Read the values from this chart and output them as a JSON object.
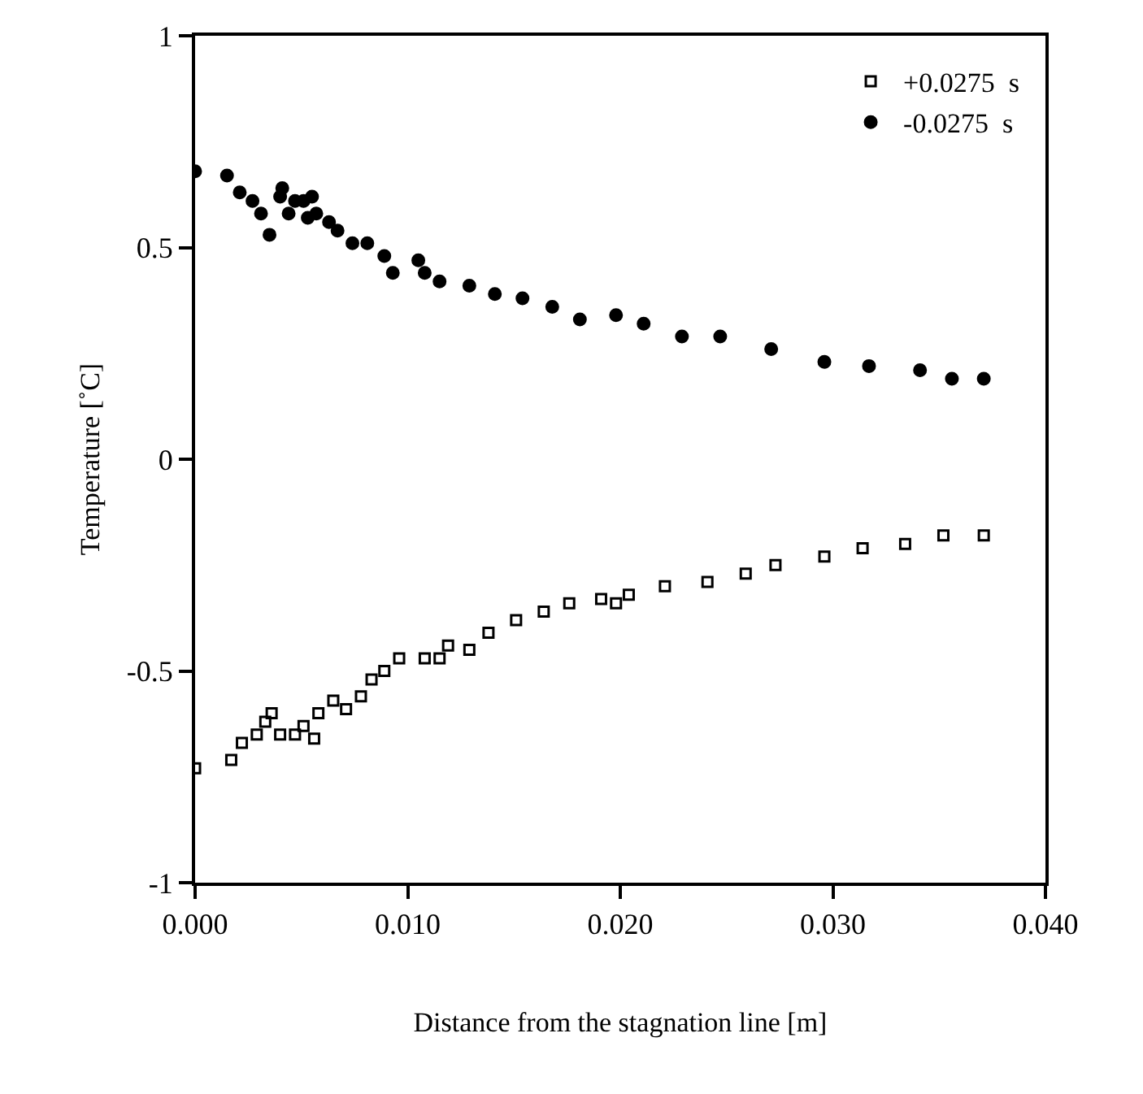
{
  "chart_data": {
    "type": "scatter",
    "xlabel": "Distance from the stagnation line [m]",
    "ylabel": "Temperature [˚C]",
    "xlim": [
      0,
      0.04
    ],
    "ylim": [
      -1,
      1
    ],
    "xticks": [
      {
        "value": 0,
        "label": "0.000"
      },
      {
        "value": 0.01,
        "label": "0.010"
      },
      {
        "value": 0.02,
        "label": "0.020"
      },
      {
        "value": 0.03,
        "label": "0.030"
      },
      {
        "value": 0.04,
        "label": "0.040"
      }
    ],
    "yticks": [
      -1,
      -0.5,
      0,
      0.5,
      1
    ],
    "legend": "top right",
    "series": [
      {
        "name": "+0.0275  s",
        "color": "#000000",
        "marker": "square",
        "x": [
          0,
          0.0017,
          0.0022,
          0.0029,
          0.0033,
          0.0036,
          0.004,
          0.0047,
          0.0051,
          0.0056,
          0.0058,
          0.0065,
          0.0071,
          0.0078,
          0.0083,
          0.0089,
          0.0096,
          0.0108,
          0.0115,
          0.0119,
          0.0129,
          0.0138,
          0.0151,
          0.0164,
          0.0176,
          0.0191,
          0.0198,
          0.0204,
          0.0221,
          0.0241,
          0.0259,
          0.0273,
          0.0296,
          0.0314,
          0.0334,
          0.0352,
          0.0371
        ],
        "values": [
          -0.73,
          -0.71,
          -0.67,
          -0.65,
          -0.62,
          -0.6,
          -0.65,
          -0.65,
          -0.63,
          -0.66,
          -0.6,
          -0.57,
          -0.59,
          -0.56,
          -0.52,
          -0.5,
          -0.47,
          -0.47,
          -0.47,
          -0.44,
          -0.45,
          -0.41,
          -0.38,
          -0.36,
          -0.34,
          -0.33,
          -0.34,
          -0.32,
          -0.3,
          -0.29,
          -0.27,
          -0.25,
          -0.23,
          -0.21,
          -0.2,
          -0.18,
          -0.18
        ]
      },
      {
        "name": "-0.0275  s",
        "color": "#000000",
        "marker": "circle",
        "x": [
          0,
          0.0015,
          0.0021,
          0.0027,
          0.0031,
          0.0035,
          0.004,
          0.0041,
          0.0044,
          0.0047,
          0.0051,
          0.0053,
          0.0055,
          0.0057,
          0.0063,
          0.0067,
          0.0074,
          0.0081,
          0.0089,
          0.0093,
          0.0105,
          0.0108,
          0.0115,
          0.0129,
          0.0141,
          0.0154,
          0.0168,
          0.0181,
          0.0198,
          0.0211,
          0.0229,
          0.0247,
          0.0271,
          0.0296,
          0.0317,
          0.0341,
          0.0356,
          0.0371
        ],
        "values": [
          0.68,
          0.67,
          0.63,
          0.61,
          0.58,
          0.53,
          0.62,
          0.64,
          0.58,
          0.61,
          0.61,
          0.57,
          0.62,
          0.58,
          0.56,
          0.54,
          0.51,
          0.51,
          0.48,
          0.44,
          0.47,
          0.44,
          0.42,
          0.41,
          0.39,
          0.38,
          0.36,
          0.33,
          0.34,
          0.32,
          0.29,
          0.29,
          0.26,
          0.23,
          0.22,
          0.21,
          0.19,
          0.19
        ]
      }
    ]
  }
}
